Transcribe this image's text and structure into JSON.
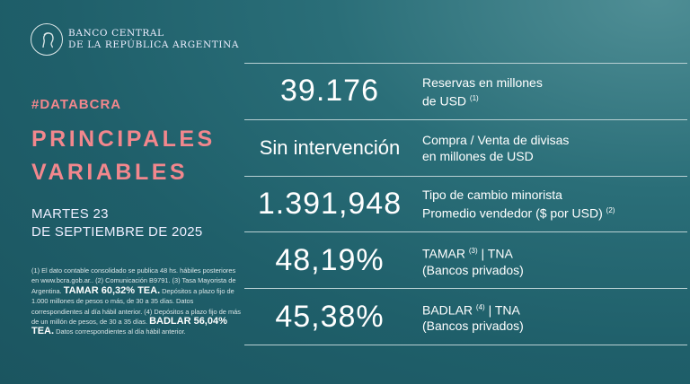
{
  "header": {
    "bank_line1": "BANCO CENTRAL",
    "bank_line2": "DE LA REPÚBLICA ARGENTINA"
  },
  "hashtag": "#DATABCRA",
  "title_line1": "PRINCIPALES",
  "title_line2": "VARIABLES",
  "date_line1": "MARTES 23",
  "date_line2": "DE SEPTIEMBRE DE 2025",
  "footnote": {
    "part1": "(1) El dato contable consolidado se publica 48 hs. hábiles posteriores en www.bcra.gob.ar.. (2) Comunicación B9791. (3) Tasa Mayorista de Argentina. ",
    "tamar": "TAMAR 60,32% TEA.",
    "part2": " Depósitos a plazo fijo de 1.000 millones de pesos o más, de 30 a 35 días. Datos correspondientes al día hábil anterior. (4) Depósitos a plazo fijo de más de un millón de pesos, de 30 a 35 días. ",
    "badlar": "BADLAR 56,04% TEA.",
    "part3": " Datos correspondientes al día hábil anterior."
  },
  "colors": {
    "accent": "#f2878d",
    "background": "#1f5f6a"
  },
  "rows": [
    {
      "value": "39.176",
      "label1": "Reservas en millones",
      "label2": "de USD ",
      "sup": "(1)",
      "sup_after": ""
    },
    {
      "value": "Sin intervención",
      "label1": "Compra / Venta de divisas",
      "label2": "en millones de USD",
      "sup": "",
      "sup_after": ""
    },
    {
      "value": "1.391,948",
      "label1": "Tipo de cambio minorista",
      "label2": "Promedio vendedor ($ por USD) ",
      "sup": "(2)",
      "sup_after": ""
    },
    {
      "value": "48,19%",
      "label1": "TAMAR ",
      "sup": "(3)",
      "sup_after": " | TNA",
      "label2": "(Bancos privados)"
    },
    {
      "value": "45,38%",
      "label1": "BADLAR ",
      "sup": "(4)",
      "sup_after": " | TNA",
      "label2": "(Bancos privados)"
    }
  ]
}
